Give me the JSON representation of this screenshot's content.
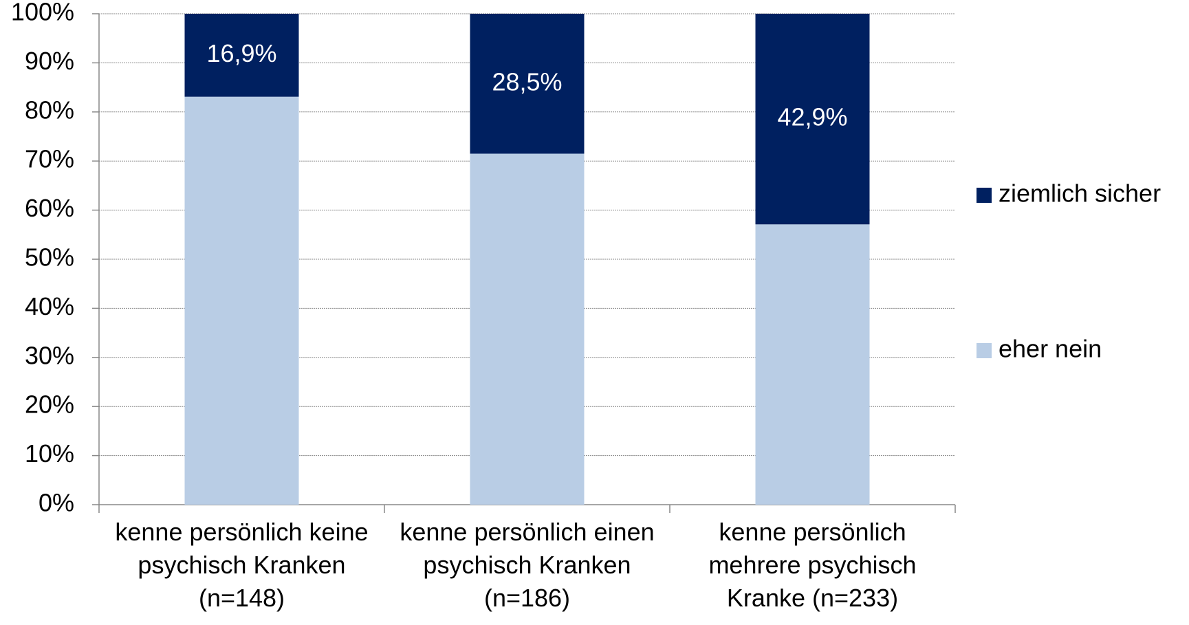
{
  "chart_data": {
    "type": "stacked_bar",
    "categories": [
      "kenne persönlich keine psychisch Kranken (n=148)",
      "kenne persönlich einen psychisch Kranken (n=186)",
      "kenne persönlich mehrere psychisch Kranke (n=233)"
    ],
    "series": [
      {
        "name": "eher nein",
        "color": "#b9cde5",
        "values": [
          83.1,
          71.5,
          57.1
        ]
      },
      {
        "name": "ziemlich sicher",
        "color": "#002060",
        "values": [
          16.9,
          28.5,
          42.9
        ],
        "value_labels": [
          "16,9%",
          "28,5%",
          "42,9%"
        ]
      }
    ],
    "ylim": [
      0,
      100
    ],
    "yticks": [
      {
        "value": 0,
        "label": "0%"
      },
      {
        "value": 10,
        "label": "10%"
      },
      {
        "value": 20,
        "label": "20%"
      },
      {
        "value": 30,
        "label": "30%"
      },
      {
        "value": 40,
        "label": "40%"
      },
      {
        "value": 50,
        "label": "50%"
      },
      {
        "value": 60,
        "label": "60%"
      },
      {
        "value": 70,
        "label": "70%"
      },
      {
        "value": 80,
        "label": "80%"
      },
      {
        "value": 90,
        "label": "90%"
      },
      {
        "value": 100,
        "label": "100%"
      }
    ],
    "grid": true,
    "legend": "right"
  }
}
